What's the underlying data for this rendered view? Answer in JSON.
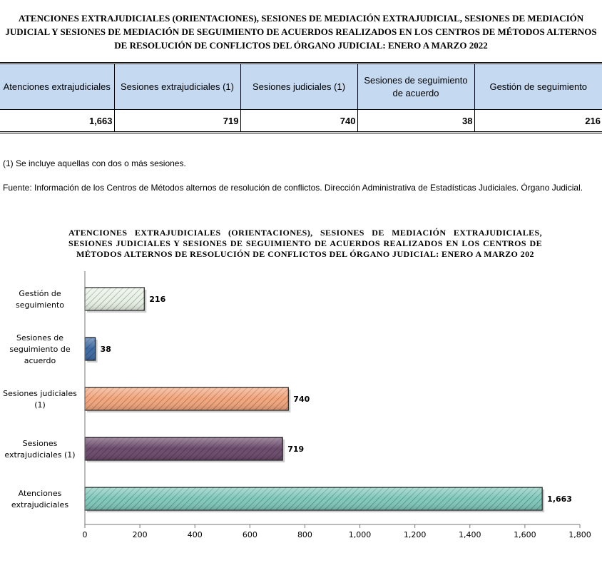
{
  "document": {
    "title": "ATENCIONES EXTRAJUDICIALES (ORIENTACIONES), SESIONES DE MEDIACIÓN EXTRAJUDICIAL, SESIONES DE MEDIACIÓN JUDICIAL Y SESIONES DE MEDIACIÓN DE SEGUIMIENTO DE ACUERDOS REALIZADOS EN LOS CENTROS DE MÉTODOS ALTERNOS DE RESOLUCIÓN DE CONFLICTOS DEL ÓRGANO JUDICIAL: ENERO A MARZO 2022",
    "footnote": "(1) Se incluye aquellas con dos o más sesiones.",
    "source": "Fuente:   Información de los Centros de Métodos alternos de resolución de conflictos. Dirección Administrativa de Estadísticas Judiciales. Órgano Judicial."
  },
  "table": {
    "headers": [
      "Atenciones extrajudiciales",
      "Sesiones  extrajudiciales (1)",
      "Sesiones judiciales (1)",
      "Sesiones de seguimiento de acuerdo",
      "Gestión de seguimiento"
    ],
    "values": [
      "1,663",
      "719",
      "740",
      "38",
      "216"
    ]
  },
  "chart_data": {
    "type": "bar",
    "orientation": "horizontal",
    "title": "ATENCIONES EXTRAJUDICIALES (ORIENTACIONES), SESIONES DE MEDIACIÓN EXTRAJUDICIALES, SESIONES JUDICIALES Y SESIONES DE SEGUIMIENTO DE ACUERDOS REALIZADOS EN LOS CENTROS DE MÉTODOS ALTERNOS DE RESOLUCIÓN DE CONFLICTOS DEL ÓRGANO JUDICIAL: ENERO A MARZO 202",
    "categories": [
      [
        "Gestión de",
        "seguimiento"
      ],
      [
        "Sesiones de",
        "seguimiento de",
        "acuerdo"
      ],
      [
        "Sesiones judiciales",
        "(1)"
      ],
      [
        "Sesiones",
        "extrajudiciales (1)"
      ],
      [
        "Atenciones",
        "extrajudiciales"
      ]
    ],
    "values": [
      216,
      38,
      740,
      719,
      1663
    ],
    "value_labels": [
      "216",
      "38",
      "740",
      "719",
      "1,663"
    ],
    "bar_colors": [
      "#e8f1e6",
      "#3d6aa3",
      "#f2a57c",
      "#6b4a6b",
      "#7fc8bb"
    ],
    "xlim": [
      0,
      1800
    ],
    "xticks": [
      0,
      200,
      400,
      600,
      800,
      1000,
      1200,
      1400,
      1600,
      1800
    ],
    "xtick_labels": [
      "0",
      "200",
      "400",
      "600",
      "800",
      "1,000",
      "1,200",
      "1,400",
      "1,600",
      "1,800"
    ],
    "grid": false,
    "legend": "none"
  }
}
